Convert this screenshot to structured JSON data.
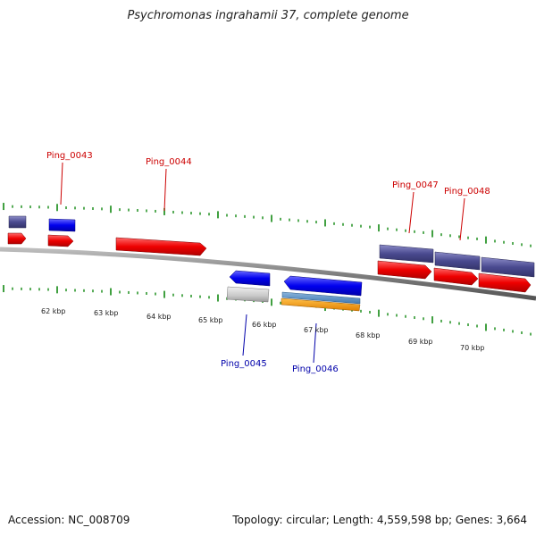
{
  "title": "Psychromonas ingrahamii 37, complete genome",
  "footer": {
    "accession": "Accession: NC_008709",
    "summary": "Topology: circular; Length: 4,559,598 bp; Genes: 3,664"
  },
  "colors": {
    "forward_label": "#cc0000",
    "reverse_label": "#0000aa",
    "tick": "#118811",
    "backbone": "#808080"
  },
  "scale_labels": [
    "62 kbp",
    "63 kbp",
    "64 kbp",
    "65 kbp",
    "66 kbp",
    "67 kbp",
    "68 kbp",
    "69 kbp",
    "70 kbp"
  ],
  "gene_labels": [
    {
      "id": "g43",
      "text": "Ping_0043",
      "strand": "forward"
    },
    {
      "id": "g44",
      "text": "Ping_0044",
      "strand": "forward"
    },
    {
      "id": "g47",
      "text": "Ping_0047",
      "strand": "forward"
    },
    {
      "id": "g48",
      "text": "Ping_0048",
      "strand": "forward"
    },
    {
      "id": "g45",
      "text": "Ping_0045",
      "strand": "reverse"
    },
    {
      "id": "g46",
      "text": "Ping_0046",
      "strand": "reverse"
    }
  ]
}
